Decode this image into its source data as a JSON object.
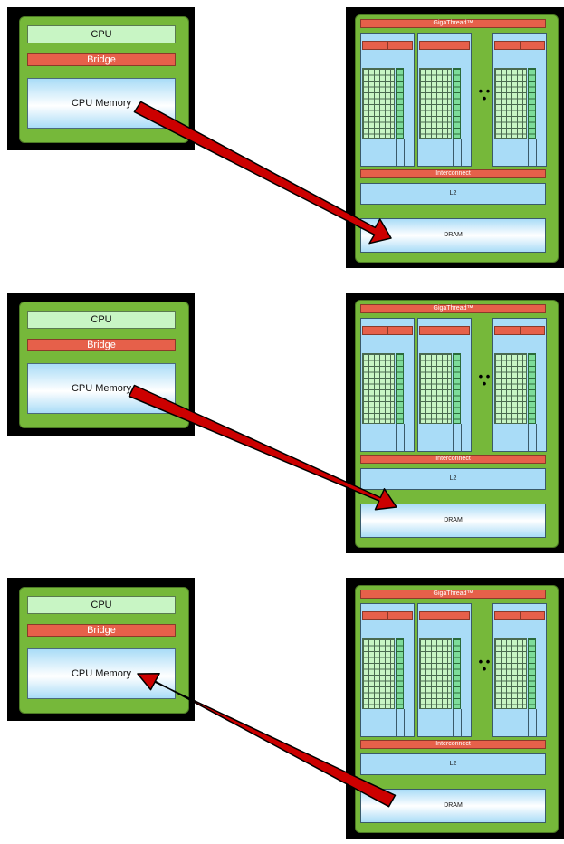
{
  "host": {
    "cpu_label": "CPU",
    "bridge_label": "Bridge",
    "memory_label": "CPU Memory"
  },
  "gpu": {
    "scheduler_label": "GigaThread™",
    "ellipsis": "• • •",
    "interconnect_label": "Interconnect",
    "l2_label": "L2",
    "dram_label": "DRAM"
  },
  "panels": [
    {
      "arrow_direction": "to-dram"
    },
    {
      "arrow_direction": "to-dram"
    },
    {
      "arrow_direction": "to-cpu-memory"
    }
  ],
  "colors": {
    "board": "#76b83a",
    "cpu": "#c8f5c4",
    "bridge": "#e6604a",
    "memory": "#a9dcf7",
    "arrow": "#cc0000"
  }
}
